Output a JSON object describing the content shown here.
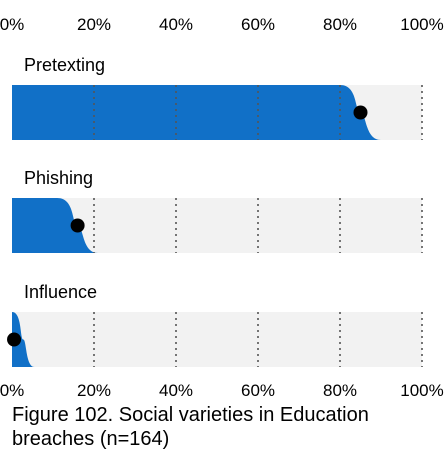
{
  "chart_data": {
    "type": "bar",
    "title": "Figure 102. Social varieties in Education breaches (n=164)",
    "x_ticks": [
      "0%",
      "20%",
      "40%",
      "60%",
      "80%",
      "100%"
    ],
    "xlim": [
      0,
      100
    ],
    "categories": [
      "Pretexting",
      "Phishing",
      "Influence"
    ],
    "values": [
      85,
      16,
      0.5
    ],
    "grid": true,
    "colors": {
      "fill": "#1170c7",
      "track": "#f2f2f2",
      "point": "#000000",
      "grid": "#555555"
    }
  }
}
